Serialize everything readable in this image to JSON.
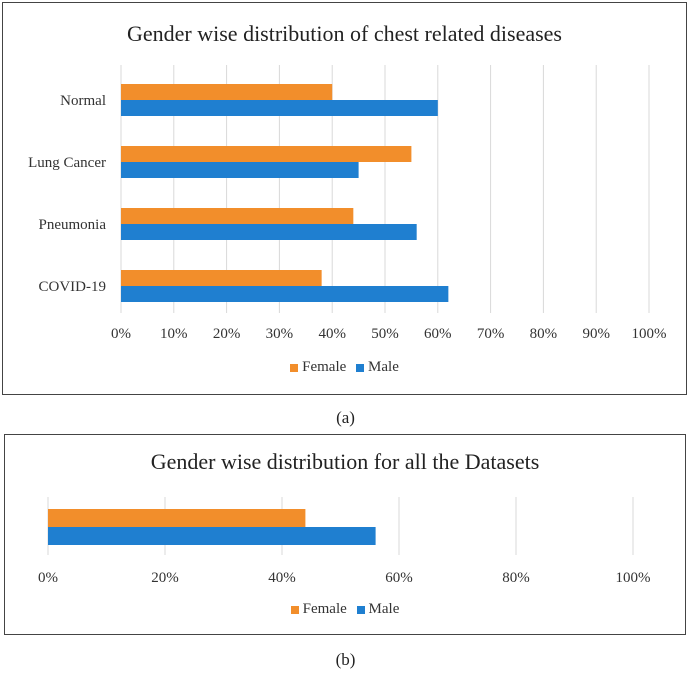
{
  "colors": {
    "female": "#f28e2b",
    "male": "#1f7fd0",
    "grid": "#d9d9d9"
  },
  "chart_data": [
    {
      "type": "bar",
      "orientation": "horizontal",
      "title": "Gender wise distribution of chest related diseases",
      "categories": [
        "Normal",
        "Lung Cancer",
        "Pneumonia",
        "COVID-19"
      ],
      "series": [
        {
          "name": "Female",
          "values": [
            40,
            55,
            44,
            38
          ]
        },
        {
          "name": "Male",
          "values": [
            60,
            45,
            56,
            62
          ]
        }
      ],
      "xlim": [
        0,
        100
      ],
      "xticks": [
        "0%",
        "10%",
        "20%",
        "30%",
        "40%",
        "50%",
        "60%",
        "70%",
        "80%",
        "90%",
        "100%"
      ],
      "legend": [
        "Female",
        "Male"
      ],
      "legend_position": "bottom",
      "grid": true,
      "caption": "(a)"
    },
    {
      "type": "bar",
      "orientation": "horizontal",
      "title": "Gender wise distribution for all the Datasets",
      "categories": [
        ""
      ],
      "series": [
        {
          "name": "Female",
          "values": [
            44
          ]
        },
        {
          "name": "Male",
          "values": [
            56
          ]
        }
      ],
      "xlim": [
        0,
        100
      ],
      "xticks": [
        "0%",
        "20%",
        "40%",
        "60%",
        "80%",
        "100%"
      ],
      "legend": [
        "Female",
        "Male"
      ],
      "legend_position": "bottom",
      "grid": true,
      "caption": "(b)"
    }
  ]
}
